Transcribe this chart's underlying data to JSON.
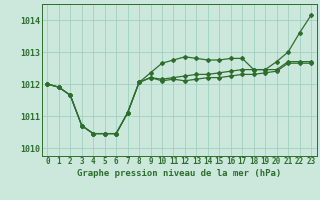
{
  "background_color": "#cce8dd",
  "grid_color": "#99ccbb",
  "line_color": "#2d6e2d",
  "marker_color": "#2d6e2d",
  "title": "Graphe pression niveau de la mer (hPa)",
  "ylim": [
    1009.75,
    1014.5
  ],
  "yticks": [
    1010,
    1011,
    1012,
    1013,
    1014
  ],
  "xlim": [
    -0.5,
    23.5
  ],
  "xticks": [
    0,
    1,
    2,
    3,
    4,
    5,
    6,
    7,
    8,
    9,
    10,
    11,
    12,
    13,
    14,
    15,
    16,
    17,
    18,
    19,
    20,
    21,
    22,
    23
  ],
  "series1": [
    1012.0,
    1011.9,
    1011.65,
    1010.7,
    1010.45,
    1010.45,
    1010.45,
    1011.1,
    1012.05,
    1012.35,
    1012.65,
    1012.75,
    1012.85,
    1012.8,
    1012.75,
    1012.75,
    1012.8,
    1012.8,
    1012.45,
    1012.45,
    1012.7,
    1013.0,
    1013.6,
    1014.15
  ],
  "series2": [
    1012.0,
    1011.9,
    1011.65,
    1010.7,
    1010.45,
    1010.45,
    1010.45,
    1011.1,
    1012.05,
    1012.2,
    1012.15,
    1012.2,
    1012.25,
    1012.3,
    1012.3,
    1012.35,
    1012.4,
    1012.45,
    1012.45,
    1012.45,
    1012.45,
    1012.7,
    1012.7,
    1012.7
  ],
  "series3": [
    1012.0,
    1011.9,
    1011.65,
    1010.7,
    1010.45,
    1010.45,
    1010.45,
    1011.1,
    1012.05,
    1012.2,
    1012.1,
    1012.15,
    1012.1,
    1012.15,
    1012.2,
    1012.2,
    1012.25,
    1012.3,
    1012.3,
    1012.35,
    1012.4,
    1012.65,
    1012.65,
    1012.65
  ],
  "tick_fontsize": 5.5,
  "ylabel_fontsize": 6.0,
  "title_fontsize": 6.5
}
